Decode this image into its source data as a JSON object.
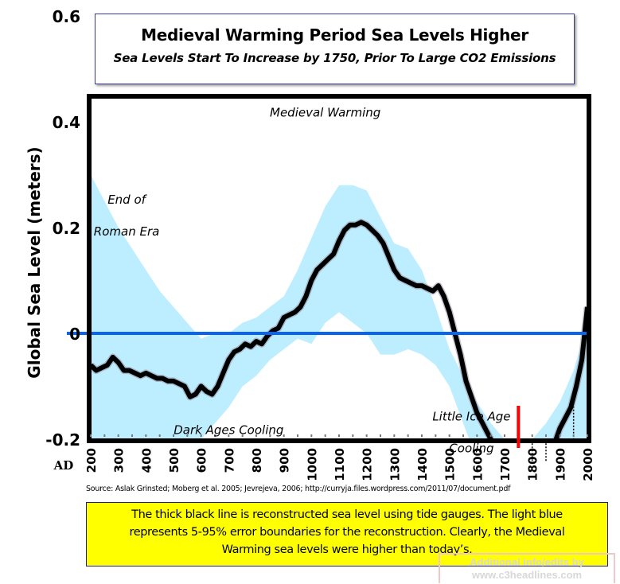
{
  "header": {
    "title": "Medieval Warming Period Sea Levels Higher",
    "subtitle": "Sea Levels Start To Increase by 1750, Prior To Large CO2 Emissions"
  },
  "source": "Source: Aslak Grinsted; Moberg et al. 2005; Jevrejeva, 2006; http://curryja.files.wordpress.com/2011/07/document.pdf",
  "note": {
    "lines": [
      "The thick black line is reconstructed sea level using tide gauges. The light blue",
      "represents 5-95% error boundaries for the reconstruction. Clearly, the Medieval",
      "Warming sea levels were higher than today’s."
    ]
  },
  "watermark": {
    "line1": "Additional info/edits by",
    "line2": "www.c3headlines.com"
  },
  "colors": {
    "line": "#000000",
    "band": "#bdeeff",
    "zero_line": "#0a64f0",
    "marker": "#ff0000",
    "note_bg": "#ffff00"
  },
  "chart_data": {
    "type": "line",
    "title": "Medieval Warming Period Sea Levels Higher",
    "subtitle": "Sea Levels Start To Increase by 1750, Prior To Large CO2 Emissions",
    "xlabel": "AD",
    "ylabel": "Global Sea Level (meters)",
    "xlim": [
      200,
      2000
    ],
    "ylim": [
      -0.31,
      0.68
    ],
    "xticks": [
      200,
      300,
      400,
      500,
      600,
      700,
      800,
      900,
      1000,
      1100,
      1200,
      1300,
      1400,
      1500,
      1600,
      1700,
      1800,
      1900,
      2000
    ],
    "yticks": [
      -0.2,
      0,
      0.2,
      0.4,
      0.6
    ],
    "ytick_labels": [
      "-0.2",
      "0",
      "0.2",
      "0.4",
      "0.6"
    ],
    "grid": false,
    "series": [
      {
        "name": "Reconstructed sea level (tide gauges)",
        "x": [
          200,
          220,
          240,
          260,
          280,
          300,
          320,
          340,
          360,
          380,
          400,
          420,
          440,
          460,
          480,
          500,
          520,
          540,
          560,
          580,
          600,
          620,
          640,
          660,
          680,
          700,
          720,
          740,
          760,
          780,
          800,
          820,
          840,
          860,
          880,
          900,
          920,
          940,
          960,
          980,
          1000,
          1020,
          1040,
          1060,
          1080,
          1100,
          1120,
          1140,
          1160,
          1180,
          1200,
          1220,
          1240,
          1260,
          1280,
          1300,
          1320,
          1340,
          1360,
          1380,
          1400,
          1420,
          1440,
          1460,
          1480,
          1500,
          1520,
          1540,
          1560,
          1580,
          1600,
          1620,
          1640,
          1660,
          1680,
          1700,
          1720,
          1740,
          1760,
          1780,
          1800,
          1820,
          1840,
          1860,
          1880,
          1900,
          1920,
          1940,
          1960,
          1980,
          2000
        ],
        "values": [
          -0.06,
          -0.07,
          -0.065,
          -0.06,
          -0.045,
          -0.055,
          -0.07,
          -0.07,
          -0.075,
          -0.08,
          -0.075,
          -0.08,
          -0.085,
          -0.085,
          -0.09,
          -0.09,
          -0.095,
          -0.1,
          -0.12,
          -0.115,
          -0.1,
          -0.11,
          -0.115,
          -0.1,
          -0.075,
          -0.05,
          -0.035,
          -0.03,
          -0.02,
          -0.025,
          -0.015,
          -0.02,
          -0.005,
          0.005,
          0.01,
          0.03,
          0.035,
          0.04,
          0.05,
          0.07,
          0.1,
          0.12,
          0.13,
          0.14,
          0.15,
          0.175,
          0.195,
          0.205,
          0.205,
          0.21,
          0.205,
          0.195,
          0.185,
          0.17,
          0.145,
          0.12,
          0.105,
          0.1,
          0.095,
          0.09,
          0.09,
          0.085,
          0.08,
          0.09,
          0.07,
          0.04,
          0.0,
          -0.04,
          -0.09,
          -0.12,
          -0.15,
          -0.17,
          -0.19,
          -0.21,
          -0.225,
          -0.24,
          -0.255,
          -0.26,
          -0.26,
          -0.25,
          -0.235,
          -0.225,
          -0.235,
          -0.235,
          -0.21,
          -0.18,
          -0.16,
          -0.14,
          -0.1,
          -0.05,
          0.05
        ]
      },
      {
        "name": "5-95% error band upper",
        "x": [
          200,
          250,
          300,
          350,
          400,
          450,
          500,
          550,
          600,
          650,
          700,
          750,
          800,
          850,
          900,
          950,
          1000,
          1050,
          1100,
          1150,
          1200,
          1250,
          1300,
          1350,
          1400,
          1450,
          1500,
          1550,
          1600,
          1650,
          1700,
          1750,
          1800,
          1850,
          1900,
          1950,
          2000
        ],
        "values": [
          0.3,
          0.25,
          0.2,
          0.16,
          0.12,
          0.08,
          0.05,
          0.02,
          -0.01,
          0.0,
          0.0,
          0.02,
          0.03,
          0.05,
          0.07,
          0.12,
          0.18,
          0.24,
          0.28,
          0.28,
          0.27,
          0.22,
          0.17,
          0.16,
          0.12,
          0.05,
          -0.03,
          -0.08,
          -0.13,
          -0.17,
          -0.2,
          -0.21,
          -0.2,
          -0.17,
          -0.13,
          -0.07,
          0.02
        ]
      },
      {
        "name": "5-95% error band lower",
        "x": [
          200,
          250,
          300,
          350,
          400,
          450,
          500,
          550,
          600,
          650,
          700,
          750,
          800,
          850,
          900,
          950,
          1000,
          1050,
          1100,
          1150,
          1200,
          1250,
          1300,
          1350,
          1400,
          1450,
          1500,
          1550,
          1600,
          1650,
          1700,
          1750,
          1800,
          1850,
          1900,
          1950,
          2000
        ],
        "values": [
          -0.33,
          -0.33,
          -0.33,
          -0.3,
          -0.25,
          -0.22,
          -0.2,
          -0.21,
          -0.2,
          -0.17,
          -0.14,
          -0.1,
          -0.08,
          -0.05,
          -0.03,
          -0.01,
          -0.02,
          0.02,
          0.04,
          0.02,
          0.0,
          -0.04,
          -0.04,
          -0.03,
          -0.04,
          -0.06,
          -0.1,
          -0.17,
          -0.24,
          -0.29,
          -0.32,
          -0.33,
          -0.3,
          -0.33,
          -0.33,
          -0.33,
          -0.33
        ]
      }
    ],
    "reference_line": {
      "y": 0,
      "label": "0"
    },
    "marker": {
      "x": 1750,
      "label": "1750"
    },
    "dotted_markers_x": [
      1800,
      1850,
      1900,
      1950
    ],
    "annotations": [
      {
        "text": "Medieval Warming",
        "x": 1050,
        "y": 0.41
      },
      {
        "text": "End of",
        "x": 330,
        "y": 0.245
      },
      {
        "text": "Roman Era",
        "x": 330,
        "y": 0.185
      },
      {
        "text": "Dark Ages Cooling",
        "x": 700,
        "y": -0.19
      },
      {
        "text": "Little Ice Age",
        "x": 1580,
        "y": -0.165
      },
      {
        "text": "Cooling",
        "x": 1580,
        "y": -0.225
      }
    ]
  }
}
